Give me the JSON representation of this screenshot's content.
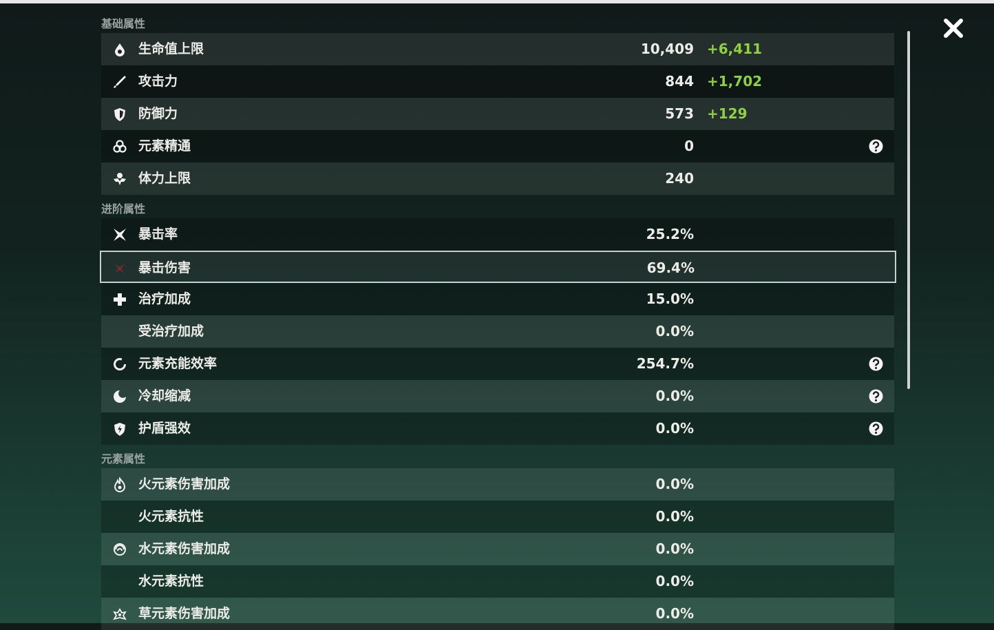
{
  "sections": [
    {
      "title": "基础属性",
      "rows": [
        {
          "label": "生命值上限",
          "value": "10,409",
          "bonus": "+6,411"
        },
        {
          "label": "攻击力",
          "value": "844",
          "bonus": "+1,702"
        },
        {
          "label": "防御力",
          "value": "573",
          "bonus": "+129"
        },
        {
          "label": "元素精通",
          "value": "0"
        },
        {
          "label": "体力上限",
          "value": "240"
        }
      ]
    },
    {
      "title": "进阶属性",
      "rows": [
        {
          "label": "暴击率",
          "value": "25.2%"
        },
        {
          "label": "暴击伤害",
          "value": "69.4%"
        },
        {
          "label": "治疗加成",
          "value": "15.0%"
        },
        {
          "label": "受治疗加成",
          "value": "0.0%"
        },
        {
          "label": "元素充能效率",
          "value": "254.7%"
        },
        {
          "label": "冷却缩减",
          "value": "0.0%"
        },
        {
          "label": "护盾强效",
          "value": "0.0%"
        }
      ]
    },
    {
      "title": "元素属性",
      "rows": [
        {
          "label": "火元素伤害加成",
          "value": "0.0%"
        },
        {
          "label": "火元素抗性",
          "value": "0.0%"
        },
        {
          "label": "水元素伤害加成",
          "value": "0.0%"
        },
        {
          "label": "水元素抗性",
          "value": "0.0%"
        },
        {
          "label": "草元素伤害加成",
          "value": "0.0%"
        }
      ]
    }
  ]
}
